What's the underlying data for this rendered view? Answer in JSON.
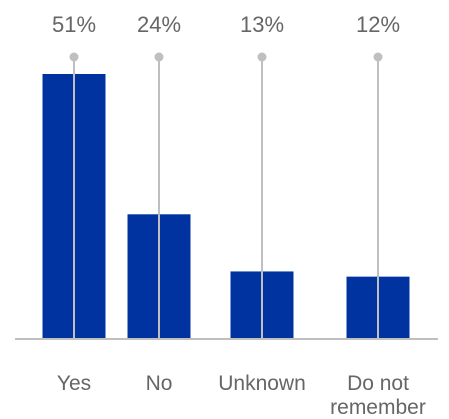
{
  "chart_data": {
    "type": "bar",
    "categories": [
      "Yes",
      "No",
      "Unknown",
      [
        "Do not",
        "remember"
      ]
    ],
    "values": [
      51,
      24,
      13,
      12
    ],
    "value_labels": [
      "51%",
      "24%",
      "13%",
      "12%"
    ],
    "unit": "%",
    "ylim": [
      0,
      51
    ],
    "grid": false,
    "legend": "none",
    "bar_color": "#0033A0",
    "leader_line_color": "#BFBFBF",
    "axis_color": "#BFBFBF",
    "label_color": "#666666"
  }
}
